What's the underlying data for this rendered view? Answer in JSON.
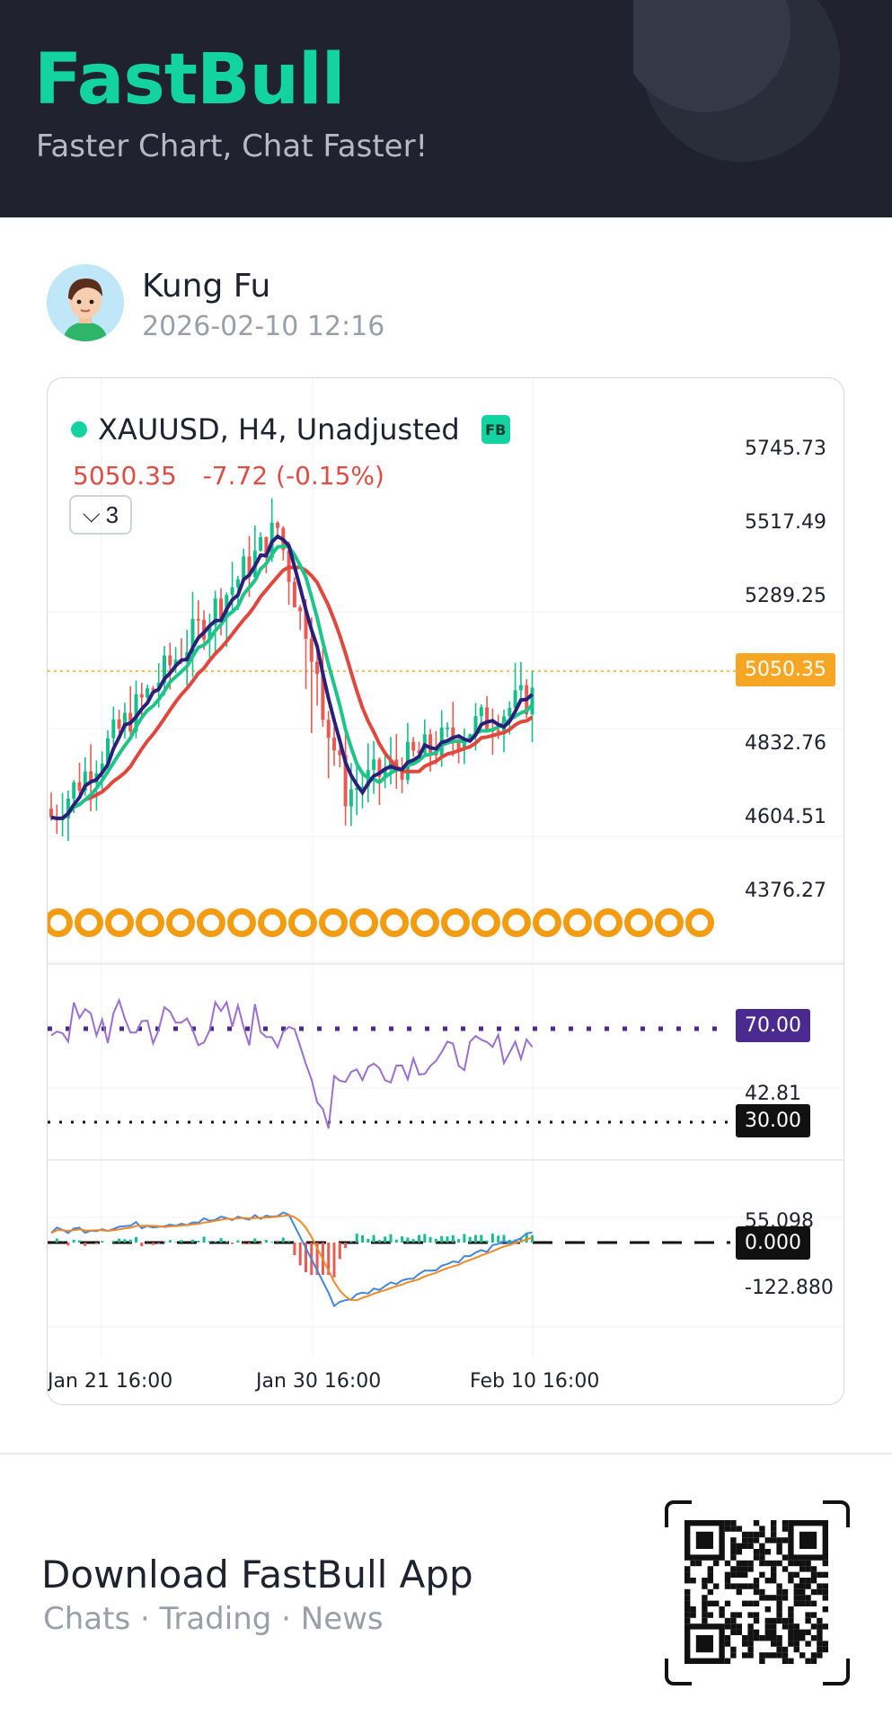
{
  "header": {
    "brand": "FastBull",
    "tagline": "Faster Chart, Chat Faster!"
  },
  "user": {
    "name": "Kung Fu",
    "timestamp": "2026-02-10 12:16"
  },
  "chart": {
    "symbol_line": "XAUUSD, H4, Unadjusted",
    "badge": "FB",
    "last_price": "5050.35",
    "change": "-7.72 (-0.15%)",
    "indicator_count": "3",
    "price_axis": [
      "5745.73",
      "5517.49",
      "5289.25",
      "4832.76",
      "4604.51",
      "4376.27"
    ],
    "price_tag": "5050.35",
    "rsi_upper": "70.00",
    "rsi_value": "42.81",
    "rsi_lower": "30.00",
    "macd_top": "55.098",
    "macd_zero": "0.000",
    "macd_bottom": "-122.880",
    "time_axis": [
      "Jan 21 16:00",
      "Jan 30 16:00",
      "Feb 10 16:00"
    ],
    "colors": {
      "up": "#13c08a",
      "down": "#e95b52",
      "ma_fast": "#2b1f7a",
      "ma_mid": "#1fc48a",
      "ma_slow": "#e0473d",
      "rsi": "#9a6fd1",
      "rsi_tag": "#4b2a8f",
      "price_tag": "#f5a623"
    }
  },
  "footer": {
    "title": "Download FastBull App",
    "subtitle": "Chats · Trading · News"
  }
}
